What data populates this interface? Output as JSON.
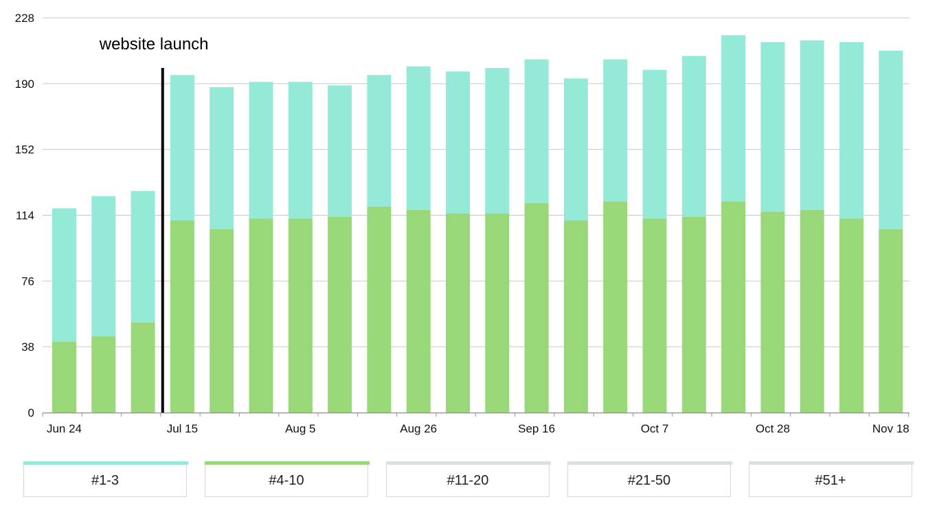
{
  "chart_data": {
    "type": "bar",
    "stacked": true,
    "x": [
      "Jun 24",
      "Jul 1",
      "Jul 8",
      "Jul 15",
      "Jul 22",
      "Jul 29",
      "Aug 5",
      "Aug 12",
      "Aug 19",
      "Aug 26",
      "Sep 2",
      "Sep 9",
      "Sep 16",
      "Sep 23",
      "Sep 30",
      "Oct 7",
      "Oct 14",
      "Oct 21",
      "Oct 28",
      "Nov 4",
      "Nov 11",
      "Nov 18"
    ],
    "x_tick_labels": [
      "Jun 24",
      "Jul 15",
      "Aug 5",
      "Aug 26",
      "Sep 16",
      "Oct 7",
      "Oct 28",
      "Nov 18"
    ],
    "series": [
      {
        "name": "#4-10",
        "color": "#98d878",
        "values": [
          41,
          44,
          52,
          111,
          106,
          112,
          112,
          113,
          119,
          117,
          115,
          115,
          121,
          111,
          122,
          112,
          113,
          122,
          116,
          117,
          112,
          106
        ]
      },
      {
        "name": "#1-3",
        "color": "#94e9d7",
        "values": [
          77,
          81,
          76,
          84,
          82,
          79,
          79,
          76,
          76,
          83,
          82,
          84,
          83,
          82,
          82,
          86,
          93,
          96,
          98,
          98,
          102,
          103
        ]
      }
    ],
    "y_ticks": [
      0,
      38,
      76,
      114,
      152,
      190,
      228
    ],
    "ylim": [
      0,
      228
    ],
    "grid": true,
    "annotation": {
      "label": "website launch",
      "after": "Jul 8"
    },
    "legend": {
      "placement": "bottom",
      "items": [
        {
          "label": "#1-3",
          "color": "#94e9d7",
          "active": true
        },
        {
          "label": "#4-10",
          "color": "#98d878",
          "active": true
        },
        {
          "label": "#11-20",
          "color": "#d9e1e1",
          "active": false
        },
        {
          "label": "#21-50",
          "color": "#d9e1e1",
          "active": false
        },
        {
          "label": "#51+",
          "color": "#d9e1e1",
          "active": false
        }
      ]
    }
  }
}
